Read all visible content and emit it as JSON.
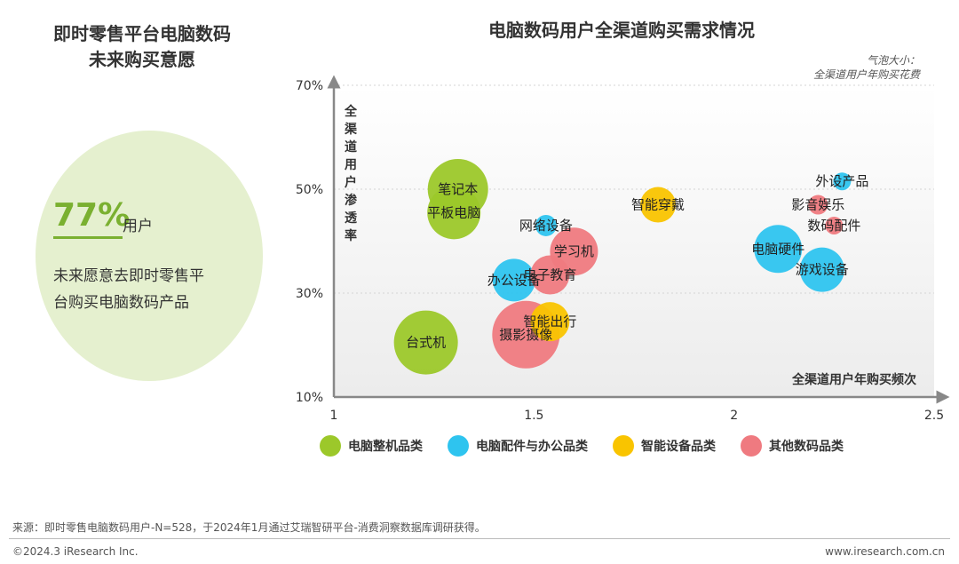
{
  "left_panel": {
    "title": "即时零售平台电脑数码\n未来购买意愿",
    "percent": "77%",
    "percent_unit": "用户",
    "description": "未来愿意去即时零售平\n台购买电脑数码产品"
  },
  "chart_data": {
    "type": "scatter",
    "title": "电脑数码用户全渠道购买需求情况",
    "bubble_size_note": "气泡大小：\n全渠道用户年购买花费",
    "xlabel": "全渠道用户年购买频次",
    "ylabel": "全渠道用户渗透率",
    "xlim": [
      1,
      2.5
    ],
    "ylim": [
      10,
      70
    ],
    "xticks": [
      "1",
      "1.5",
      "2",
      "2.5"
    ],
    "yticks": [
      "10%",
      "30%",
      "50%",
      "70%"
    ],
    "legend_position": "bottom",
    "series": [
      {
        "name": "电脑整机品类",
        "color": "#9cc82a",
        "points": [
          {
            "label": "笔记本",
            "x": 1.31,
            "y": 50,
            "size": 34
          },
          {
            "label": "平板电脑",
            "x": 1.3,
            "y": 45.5,
            "size": 30
          },
          {
            "label": "台式机",
            "x": 1.23,
            "y": 20.5,
            "size": 36
          }
        ]
      },
      {
        "name": "电脑配件与办公品类",
        "color": "#2ec4ef",
        "points": [
          {
            "label": "网络设备",
            "x": 1.53,
            "y": 43,
            "size": 12
          },
          {
            "label": "办公设备",
            "x": 1.45,
            "y": 32.5,
            "size": 24
          },
          {
            "label": "电脑硬件",
            "x": 2.11,
            "y": 38.5,
            "size": 27
          },
          {
            "label": "游戏设备",
            "x": 2.22,
            "y": 34.5,
            "size": 25
          },
          {
            "label": "外设产品",
            "x": 2.27,
            "y": 51.5,
            "size": 10
          }
        ]
      },
      {
        "name": "智能设备品类",
        "color": "#f9c400",
        "points": [
          {
            "label": "智能穿戴",
            "x": 1.81,
            "y": 47,
            "size": 20
          },
          {
            "label": "智能出行",
            "x": 1.54,
            "y": 24.5,
            "size": 22
          }
        ]
      },
      {
        "name": "其他数码品类",
        "color": "#ef7a80",
        "points": [
          {
            "label": "学习机",
            "x": 1.6,
            "y": 38,
            "size": 27
          },
          {
            "label": "电子教育",
            "x": 1.54,
            "y": 33.5,
            "size": 22
          },
          {
            "label": "摄影摄像",
            "x": 1.48,
            "y": 22,
            "size": 38
          },
          {
            "label": "影音娱乐",
            "x": 2.21,
            "y": 47,
            "size": 11
          },
          {
            "label": "数码配件",
            "x": 2.25,
            "y": 43,
            "size": 10
          }
        ]
      }
    ]
  },
  "footer": {
    "source": "来源：即时零售电脑数码用户-N=528，于2024年1月通过艾瑞智研平台-消费洞察数据库调研获得。",
    "copyright": "©2024.3 iResearch Inc.",
    "website": "www.iresearch.com.cn"
  }
}
